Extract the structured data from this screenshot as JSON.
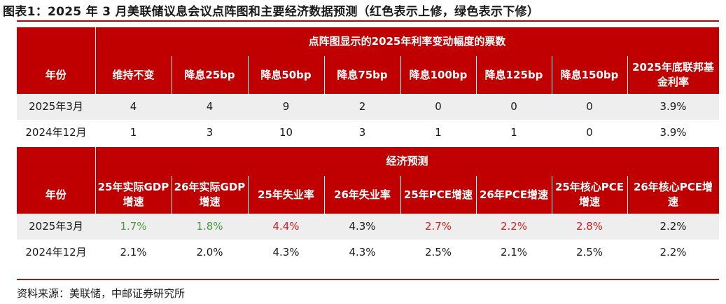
{
  "title": "图表1：2025 年 3 月美联储议息会议点阵图和主要经济数据预测（红色表示上修，绿色表示下修）",
  "colors": {
    "header_red": "#c00000",
    "up_red": "#d81e1e",
    "down_green": "#4a9a3a",
    "stripe": "#eeeeee"
  },
  "section1": {
    "title": "点阵图显示的2025年利率变动幅度的票数",
    "year_header": "年份",
    "columns": [
      "维持不变",
      "降息25bp",
      "降息50bp",
      "降息75bp",
      "降息100bp",
      "降息125bp",
      "降息150bp",
      "2025年底联邦基金利率"
    ],
    "rows": [
      {
        "year": "2025年3月",
        "values": [
          "4",
          "4",
          "9",
          "2",
          "0",
          "0",
          "0",
          "3.9%"
        ]
      },
      {
        "year": "2024年12月",
        "values": [
          "1",
          "3",
          "10",
          "3",
          "1",
          "1",
          "0",
          "3.9%"
        ]
      }
    ]
  },
  "section2": {
    "title": "经济预测",
    "year_header": "年份",
    "columns": [
      "25年实际GDP增速",
      "26年实际GDP增速",
      "25年失业率",
      "26年失业率",
      "25年PCE增速",
      "26年PCE增速",
      "25年核心PCE增速",
      "26年核心PCE增速"
    ],
    "rows": [
      {
        "year": "2025年3月",
        "values": [
          "1.7%",
          "1.8%",
          "4.4%",
          "4.3%",
          "2.7%",
          "2.2%",
          "2.8%",
          "2.2%"
        ],
        "revision": [
          "down",
          "down",
          "up",
          "none",
          "up",
          "up",
          "up",
          "none"
        ]
      },
      {
        "year": "2024年12月",
        "values": [
          "2.1%",
          "2.0%",
          "4.3%",
          "4.3%",
          "2.5%",
          "2.1%",
          "2.5%",
          "2.2%"
        ],
        "revision": [
          "none",
          "none",
          "none",
          "none",
          "none",
          "none",
          "none",
          "none"
        ]
      }
    ]
  },
  "source": "资料来源：美联储，中邮证券研究所"
}
